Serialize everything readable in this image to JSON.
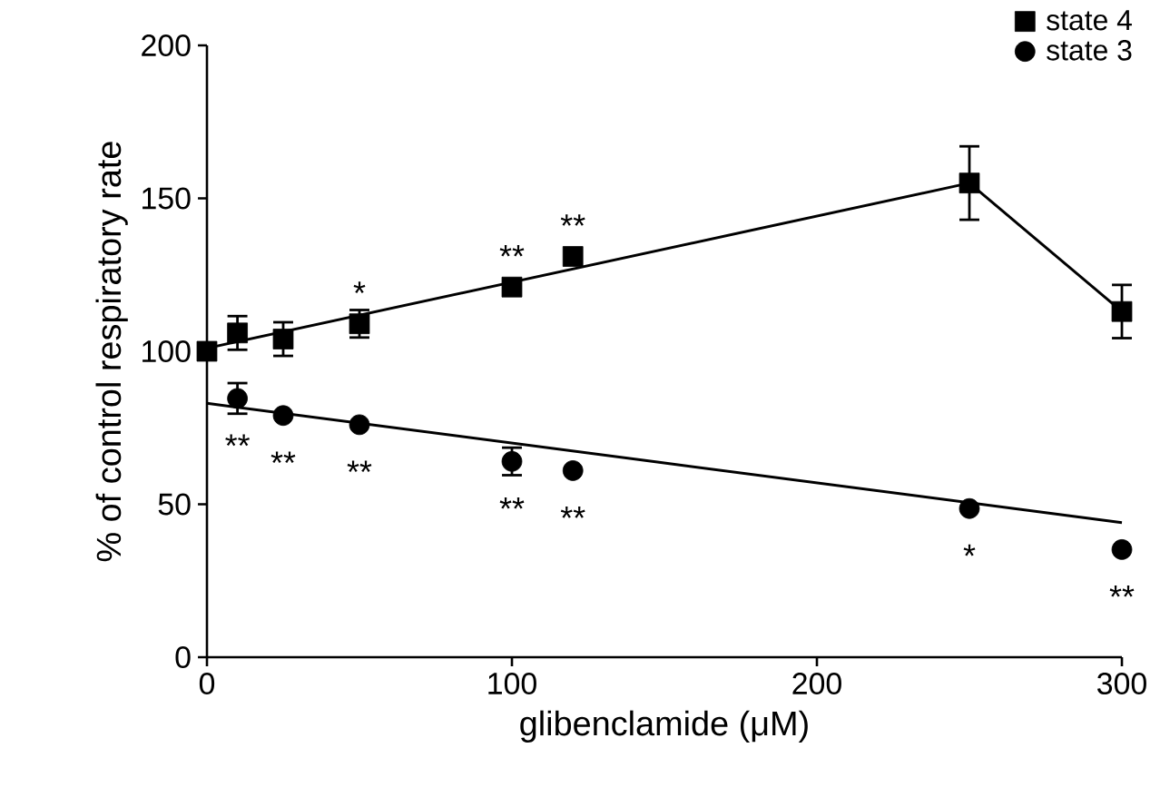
{
  "chart_data": {
    "type": "scatter",
    "xlabel": "glibenclamide (μM)",
    "ylabel": "% of control respiratory rate",
    "xlim": [
      0,
      300
    ],
    "ylim": [
      0,
      200
    ],
    "xticks": [
      0,
      100,
      200,
      300
    ],
    "yticks": [
      0,
      50,
      100,
      150,
      200
    ],
    "grid": false,
    "legend": "top right",
    "series": [
      {
        "name": "state 4",
        "color": "#000000",
        "marker": "square",
        "x": [
          0,
          10,
          25,
          50,
          100,
          120,
          250,
          300
        ],
        "values": [
          100,
          106,
          104,
          109,
          121,
          131,
          155,
          113
        ],
        "errors": [
          null,
          5.5,
          5.5,
          4.5,
          null,
          null,
          12,
          8.7
        ]
      },
      {
        "name": "state 3",
        "color": "#000000",
        "marker": "circle",
        "x": [
          10,
          25,
          50,
          100,
          120,
          250,
          300
        ],
        "values": [
          84.6,
          79,
          76,
          64,
          61,
          48.6,
          35.2
        ],
        "errors": [
          5,
          null,
          null,
          4.5,
          null,
          null,
          null
        ]
      },
      {
        "type": "line",
        "color": "#000000",
        "x": [
          0,
          250,
          300
        ],
        "values": [
          101,
          155,
          113
        ]
      },
      {
        "type": "line",
        "color": "#000000",
        "x": [
          0,
          300
        ],
        "values": [
          83,
          44
        ]
      }
    ],
    "annotations": [
      {
        "text": "*",
        "x": 50,
        "y": 109
      },
      {
        "text": "**",
        "x": 100,
        "y": 121
      },
      {
        "text": "**",
        "x": 120,
        "y": 131
      },
      {
        "text": "**",
        "x": 10,
        "y": 84.6
      },
      {
        "text": "**",
        "x": 25,
        "y": 79
      },
      {
        "text": "**",
        "x": 50,
        "y": 76
      },
      {
        "text": "**",
        "x": 100,
        "y": 64
      },
      {
        "text": "**",
        "x": 120,
        "y": 61
      },
      {
        "text": "*",
        "x": 250,
        "y": 48.6
      },
      {
        "text": "**",
        "x": 300,
        "y": 35.2
      }
    ]
  }
}
